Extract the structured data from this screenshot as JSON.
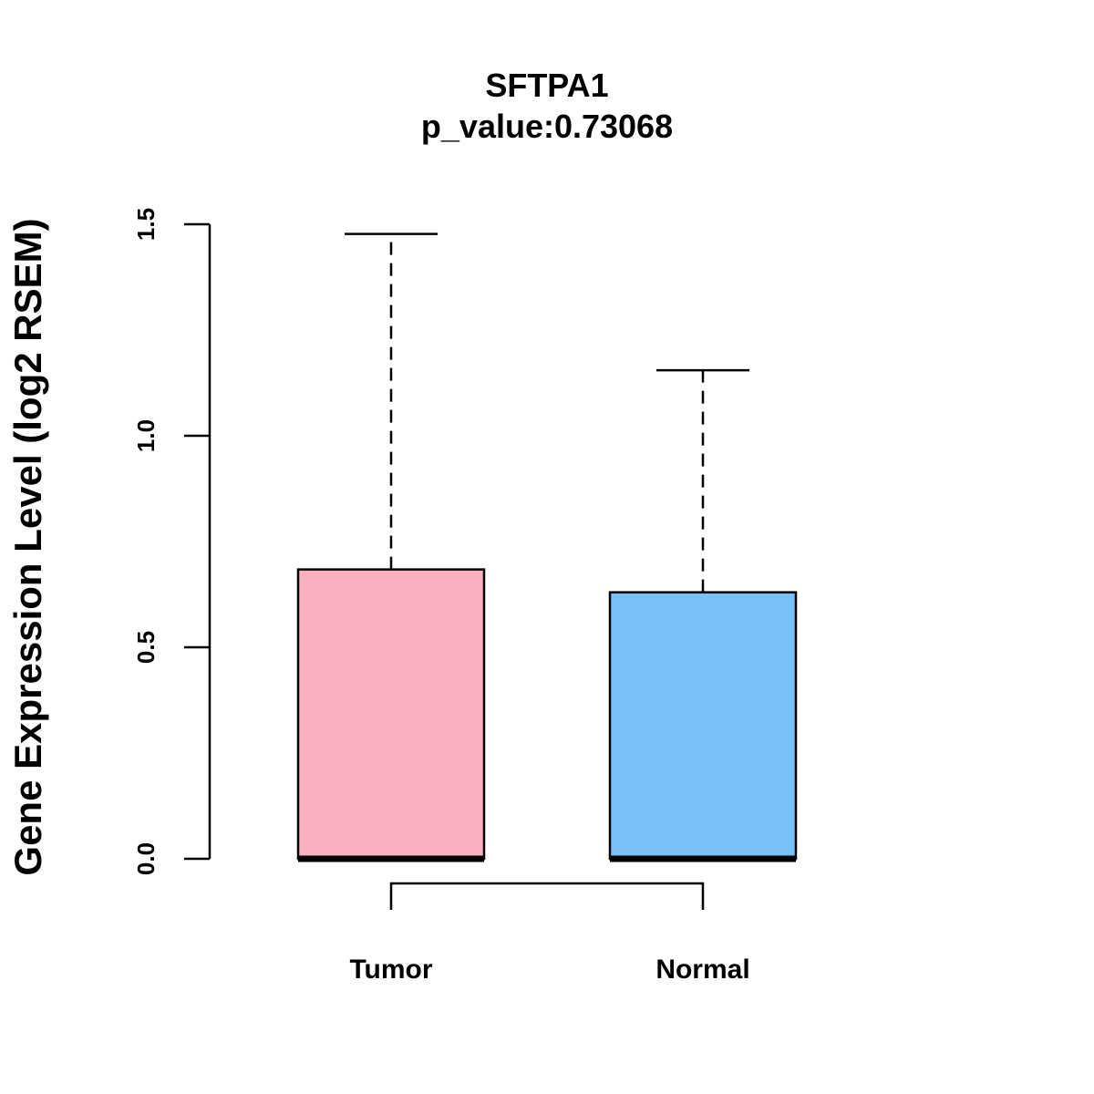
{
  "chart_data": {
    "type": "boxplot",
    "title": "SFTPA1",
    "subtitle": "p_value:0.73068",
    "ylabel": "Gene Expression Level (log2 RSEM)",
    "xlabel": "",
    "ylim": [
      0,
      1.5
    ],
    "yticks": [
      0.0,
      0.5,
      1.0,
      1.5
    ],
    "ytick_labels": [
      "0.0",
      "0.5",
      "1.0",
      "1.5"
    ],
    "categories": [
      "Tumor",
      "Normal"
    ],
    "boxes": [
      {
        "name": "Tumor",
        "min": 0.0,
        "q1": 0.0,
        "median": 0.0,
        "q3": 0.684,
        "max": 1.477,
        "color": "#FBB0C0"
      },
      {
        "name": "Normal",
        "min": 0.0,
        "q1": 0.0,
        "median": 0.0,
        "q3": 0.63,
        "max": 1.155,
        "color": "#78C1F8"
      }
    ],
    "comparison_bracket": [
      "Tumor",
      "Normal"
    ],
    "grid": false,
    "legend": "none"
  }
}
